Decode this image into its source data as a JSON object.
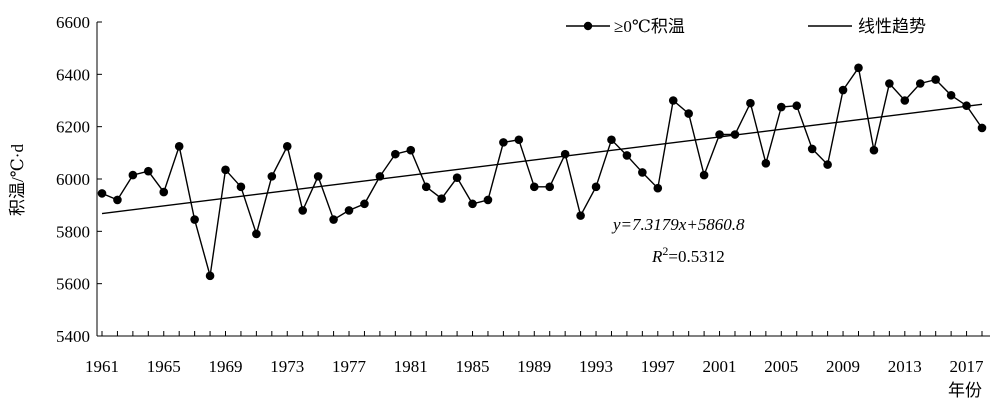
{
  "chart_data": {
    "type": "line",
    "title": "",
    "xlabel": "年份",
    "ylabel": "积温/℃·d",
    "ylim": [
      5400,
      6600
    ],
    "yticks": [
      5400,
      5600,
      5800,
      6000,
      6200,
      6400,
      6600
    ],
    "xlim": [
      1961,
      2018
    ],
    "xticks": [
      1961,
      1965,
      1969,
      1973,
      1977,
      1981,
      1985,
      1989,
      1993,
      1997,
      2001,
      2005,
      2009,
      2013,
      2017
    ],
    "grid": false,
    "legend_position": "top-right",
    "series": [
      {
        "name": "≥0℃积温",
        "style": "line-with-markers",
        "x": [
          1961,
          1962,
          1963,
          1964,
          1965,
          1966,
          1967,
          1968,
          1969,
          1970,
          1971,
          1972,
          1973,
          1974,
          1975,
          1976,
          1977,
          1978,
          1979,
          1980,
          1981,
          1982,
          1983,
          1984,
          1985,
          1986,
          1987,
          1988,
          1989,
          1990,
          1991,
          1992,
          1993,
          1994,
          1995,
          1996,
          1997,
          1998,
          1999,
          2000,
          2001,
          2002,
          2003,
          2004,
          2005,
          2006,
          2007,
          2008,
          2009,
          2010,
          2011,
          2012,
          2013,
          2014,
          2015,
          2016,
          2017,
          2018
        ],
        "values": [
          5945,
          5920,
          6015,
          6030,
          5950,
          6125,
          5845,
          5630,
          6035,
          5970,
          5790,
          6010,
          6125,
          5880,
          6010,
          5845,
          5880,
          5905,
          6010,
          6095,
          6110,
          5970,
          5925,
          6005,
          5905,
          5920,
          6140,
          6150,
          5970,
          5970,
          6095,
          5860,
          5970,
          6150,
          6090,
          6025,
          5965,
          6300,
          6250,
          6015,
          6170,
          6170,
          6290,
          6060,
          6275,
          6280,
          6115,
          6055,
          6340,
          6425,
          6110,
          6365,
          6300,
          6365,
          6380,
          6320,
          6280,
          6195
        ]
      },
      {
        "name": "线性趋势",
        "style": "line",
        "slope": 7.3179,
        "intercept": 5860.8
      }
    ],
    "annotations": {
      "equation": "y=7.3179x+5860.8",
      "r2_label": "R",
      "r2_sup": "2",
      "r2_value": "=0.5312"
    }
  }
}
